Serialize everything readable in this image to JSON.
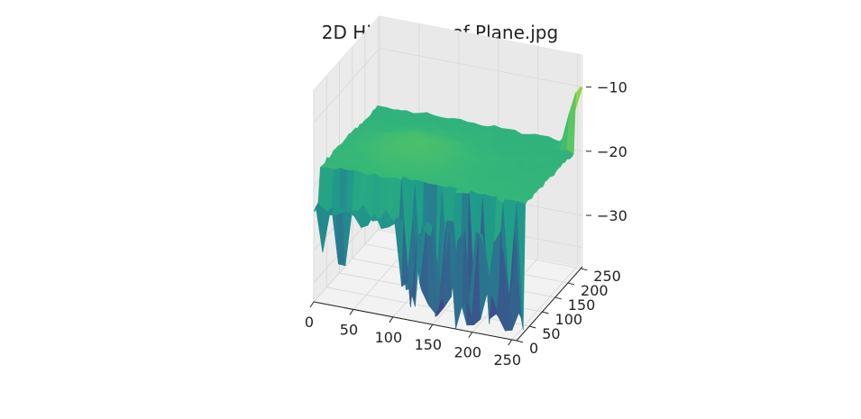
{
  "chart_data": {
    "type": "surface",
    "title": "2D Histogram of Plane.jpg",
    "colormap": "viridis",
    "x_ticks": [
      0,
      50,
      100,
      150,
      200,
      250
    ],
    "y_ticks": [
      0,
      50,
      100,
      150,
      200,
      250
    ],
    "z_ticks": [
      -10,
      -20,
      -30
    ],
    "x_tick_labels": [
      "0",
      "50",
      "100",
      "150",
      "200",
      "250"
    ],
    "y_tick_labels": [
      "0",
      "50",
      "100",
      "150",
      "200",
      "250"
    ],
    "z_tick_labels": [
      "−10",
      "−20",
      "−30"
    ],
    "xlim": [
      0,
      256
    ],
    "ylim": [
      0,
      256
    ],
    "zlim": [
      -38,
      -5
    ],
    "grid": true,
    "surface_plateau_z": -18,
    "surface_min_z": -38,
    "surface_max_z": -5
  }
}
